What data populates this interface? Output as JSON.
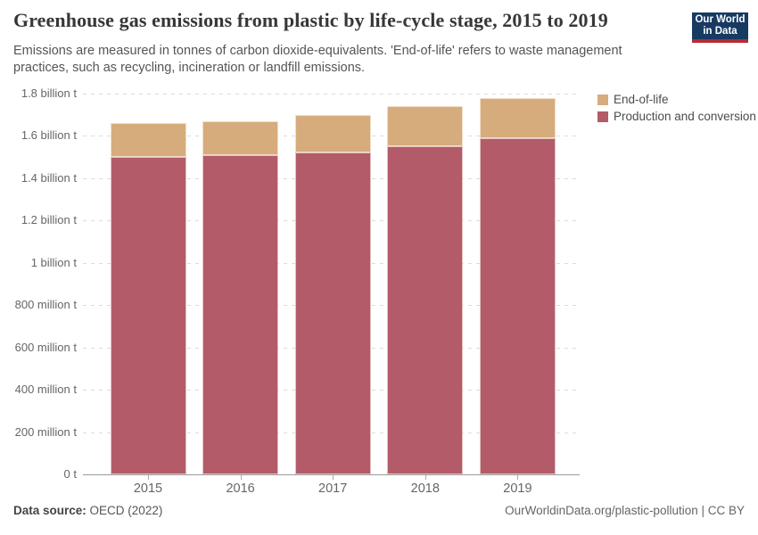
{
  "header": {
    "title": "Greenhouse gas emissions from plastic by life-cycle stage, 2015 to 2019",
    "subtitle": "Emissions are measured in tonnes of carbon dioxide-equivalents. 'End-of-life' refers to waste management practices, such as recycling, incineration or landfill emissions.",
    "logo": {
      "line1": "Our World",
      "line2": "in Data",
      "bg_color": "#173A63",
      "stripe_color": "#B52C35"
    }
  },
  "legend": {
    "items": [
      {
        "label": "End-of-life",
        "color": "#D6AC7C"
      },
      {
        "label": "Production and conversion",
        "color": "#B35B69"
      }
    ]
  },
  "chart_data": {
    "type": "bar",
    "stacked": true,
    "title": "Greenhouse gas emissions from plastic by life-cycle stage, 2015 to 2019",
    "unit": "tonnes of carbon dioxide-equivalents",
    "categories": [
      "2015",
      "2016",
      "2017",
      "2018",
      "2019"
    ],
    "series": [
      {
        "name": "Production and conversion",
        "color": "#B35B69",
        "values_billion_t": [
          1.5,
          1.51,
          1.52,
          1.55,
          1.59
        ]
      },
      {
        "name": "End-of-life",
        "color": "#D6AC7C",
        "values_billion_t": [
          0.16,
          0.16,
          0.18,
          0.19,
          0.19
        ]
      }
    ],
    "stack_totals_billion_t": [
      1.66,
      1.67,
      1.7,
      1.74,
      1.78
    ],
    "xlabel": "",
    "ylabel": "",
    "ylim": [
      0,
      1.8
    ],
    "y_ticks": [
      {
        "value": 1.8,
        "label": "1.8 billion t"
      },
      {
        "value": 1.6,
        "label": "1.6 billion t"
      },
      {
        "value": 1.4,
        "label": "1.4 billion t"
      },
      {
        "value": 1.2,
        "label": "1.2 billion t"
      },
      {
        "value": 1,
        "label": "1 billion t"
      },
      {
        "value": 0.8,
        "label": "800 million t"
      },
      {
        "value": 0.6,
        "label": "600 million t"
      },
      {
        "value": 0.4,
        "label": "400 million t"
      },
      {
        "value": 0.2,
        "label": "200 million t"
      },
      {
        "value": 0,
        "label": "0 t"
      }
    ],
    "grid": "horizontal dashed",
    "legend_position": "top-right"
  },
  "footer": {
    "source_label": "Data source:",
    "source_value": "OECD (2022)",
    "link": "OurWorldinData.org/plastic-pollution | CC BY"
  }
}
